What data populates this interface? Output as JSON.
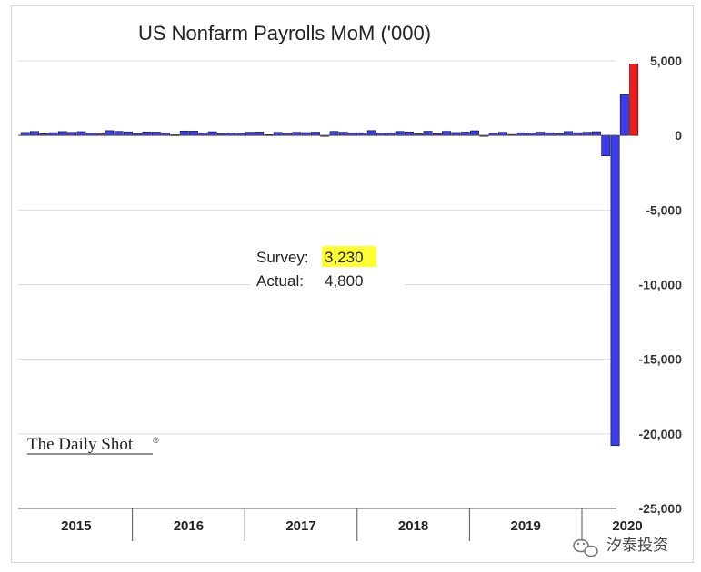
{
  "chart_data": {
    "type": "bar",
    "title": "US Nonfarm Payrolls MoM ('000)",
    "xlabel": "",
    "ylabel": "",
    "ylim": [
      -25000,
      5000
    ],
    "yticks": [
      5000,
      0,
      -5000,
      -10000,
      -15000,
      -20000,
      -25000
    ],
    "ytick_labels": [
      "5,000",
      "0",
      "-5,000",
      "-10,000",
      "-15,000",
      "-20,000",
      "-25,000"
    ],
    "year_labels": [
      "2015",
      "2016",
      "2017",
      "2018",
      "2019",
      "2020"
    ],
    "grid": true,
    "series_colors": {
      "history": "#3b3bf0",
      "latest": "#ee1c1c"
    },
    "values": [
      201,
      266,
      119,
      187,
      260,
      206,
      254,
      157,
      100,
      321,
      272,
      239,
      126,
      237,
      225,
      153,
      43,
      297,
      291,
      176,
      249,
      124,
      164,
      155,
      216,
      232,
      50,
      207,
      145,
      210,
      189,
      221,
      -33,
      271,
      216,
      175,
      176,
      324,
      155,
      175,
      270,
      235,
      108,
      282,
      118,
      277,
      196,
      227,
      312,
      1,
      147,
      210,
      62,
      178,
      166,
      219,
      180,
      128,
      261,
      184,
      214,
      251,
      -1373,
      -20787,
      2725,
      4800
    ],
    "highlight_last": true,
    "annotations": {
      "survey_label": "Survey:",
      "survey_value": "3,230",
      "actual_label": "Actual:",
      "actual_value": "4,800"
    }
  },
  "branding": {
    "logo": "The Daily Shot",
    "logo_mark": "®",
    "watermark_icon": "wechat-icon",
    "watermark_text": "汐泰投资"
  }
}
